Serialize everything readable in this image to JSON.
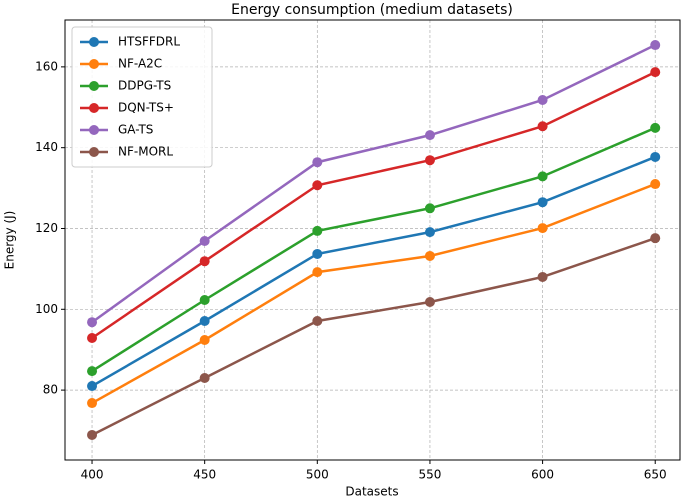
{
  "chart_data": {
    "type": "line",
    "title": "Energy consumption (medium datasets)",
    "xlabel": "Datasets",
    "ylabel": "Energy (J)",
    "x": [
      400,
      450,
      500,
      550,
      600,
      650
    ],
    "series": [
      {
        "name": "HTSFFDRL",
        "color": "#1f77b4",
        "values": [
          81,
          97.1,
          113.7,
          119.1,
          126.5,
          137.7
        ]
      },
      {
        "name": "NF-A2C",
        "color": "#ff7f0e",
        "values": [
          76.8,
          92.4,
          109.2,
          113.2,
          120.1,
          131
        ]
      },
      {
        "name": "DDPG-TS",
        "color": "#2ca02c",
        "values": [
          84.7,
          102.3,
          119.4,
          125,
          132.9,
          144.9
        ]
      },
      {
        "name": "DQN-TS+",
        "color": "#d62728",
        "values": [
          92.9,
          111.9,
          130.7,
          136.9,
          145.3,
          158.7
        ]
      },
      {
        "name": "GA-TS",
        "color": "#9467bd",
        "values": [
          96.8,
          116.9,
          136.4,
          143.1,
          151.8,
          165.4
        ]
      },
      {
        "name": "NF-MORL",
        "color": "#8c564b",
        "values": [
          68.9,
          83,
          97.1,
          101.8,
          108,
          117.6
        ]
      }
    ],
    "xlim": [
      388,
      661
    ],
    "xticks": [
      400,
      450,
      500,
      550,
      600,
      650
    ],
    "ylim": [
      62.7,
      171.6
    ],
    "yticks": [
      80,
      100,
      120,
      140,
      160
    ],
    "grid": true,
    "legend": "upper left"
  }
}
